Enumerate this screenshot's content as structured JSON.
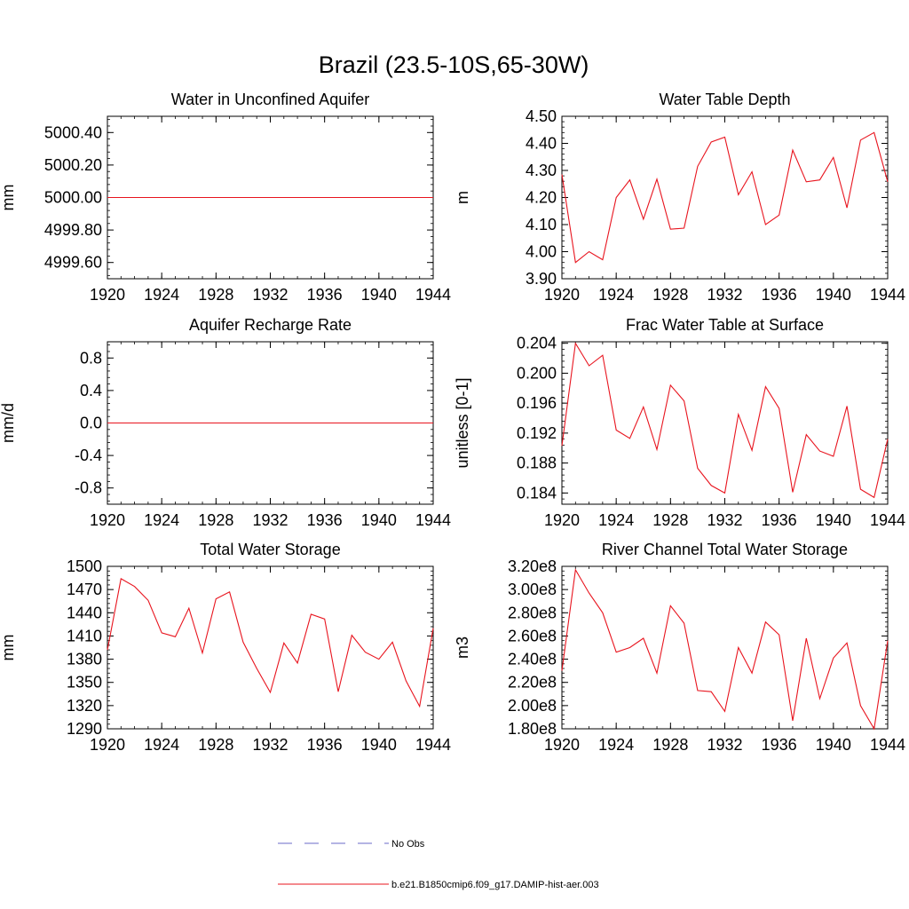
{
  "figure": {
    "title": "Brazil (23.5-10S,65-30W)"
  },
  "legend": [
    {
      "label": "No Obs",
      "color": "#6a6ac8",
      "dash": true
    },
    {
      "label": "b.e21.B1850cmip6.f09_g17.DAMIP-hist-aer.003",
      "color": "#e8141e",
      "dash": false
    }
  ],
  "chart_data": [
    {
      "type": "line",
      "title": "Water in Unconfined Aquifer",
      "ylabel": "mm",
      "xlim": [
        1920,
        1944
      ],
      "ylim": [
        4999.5,
        5000.5
      ],
      "xticks": [
        "1920",
        "1924",
        "1928",
        "1932",
        "1936",
        "1940",
        "1944"
      ],
      "xtick_values": [
        1920,
        1924,
        1928,
        1932,
        1936,
        1940,
        1944
      ],
      "yticks": [
        "4999.60",
        "4999.80",
        "5000.00",
        "5000.20",
        "5000.40"
      ],
      "ytick_values": [
        4999.6,
        4999.8,
        5000.0,
        5000.2,
        5000.4
      ],
      "x": [
        1920,
        1921,
        1922,
        1923,
        1924,
        1925,
        1926,
        1927,
        1928,
        1929,
        1930,
        1931,
        1932,
        1933,
        1934,
        1935,
        1936,
        1937,
        1938,
        1939,
        1940,
        1941,
        1942,
        1943,
        1944
      ],
      "series": [
        {
          "values": [
            5000,
            5000,
            5000,
            5000,
            5000,
            5000,
            5000,
            5000,
            5000,
            5000,
            5000,
            5000,
            5000,
            5000,
            5000,
            5000,
            5000,
            5000,
            5000,
            5000,
            5000,
            5000,
            5000,
            5000,
            5000
          ],
          "color": "#e8141e"
        }
      ]
    },
    {
      "type": "line",
      "title": "Water Table Depth",
      "ylabel": "m",
      "xlim": [
        1920,
        1944
      ],
      "ylim": [
        3.9,
        4.5
      ],
      "xticks": [
        "1920",
        "1924",
        "1928",
        "1932",
        "1936",
        "1940",
        "1944"
      ],
      "xtick_values": [
        1920,
        1924,
        1928,
        1932,
        1936,
        1940,
        1944
      ],
      "yticks": [
        "3.90",
        "4.00",
        "4.10",
        "4.20",
        "4.30",
        "4.40",
        "4.50"
      ],
      "ytick_values": [
        3.9,
        4.0,
        4.1,
        4.2,
        4.3,
        4.4,
        4.5
      ],
      "x": [
        1920,
        1921,
        1922,
        1923,
        1924,
        1925,
        1926,
        1927,
        1928,
        1929,
        1930,
        1931,
        1932,
        1933,
        1934,
        1935,
        1936,
        1937,
        1938,
        1939,
        1940,
        1941,
        1942,
        1943,
        1944
      ],
      "series": [
        {
          "values": [
            4.285,
            3.96,
            4.0,
            3.97,
            4.2,
            4.265,
            4.12,
            4.268,
            4.083,
            4.087,
            4.315,
            4.405,
            4.423,
            4.21,
            4.295,
            4.1,
            4.135,
            4.375,
            4.258,
            4.265,
            4.348,
            4.162,
            4.412,
            4.44,
            4.258
          ],
          "color": "#e8141e"
        }
      ]
    },
    {
      "type": "line",
      "title": "Aquifer Recharge Rate",
      "ylabel": "mm/d",
      "xlim": [
        1920,
        1944
      ],
      "ylim": [
        -1.0,
        1.0
      ],
      "xticks": [
        "1920",
        "1924",
        "1928",
        "1932",
        "1936",
        "1940",
        "1944"
      ],
      "xtick_values": [
        1920,
        1924,
        1928,
        1932,
        1936,
        1940,
        1944
      ],
      "yticks": [
        "-0.8",
        "-0.4",
        "0.0",
        "0.4",
        "0.8"
      ],
      "ytick_values": [
        -0.8,
        -0.4,
        0.0,
        0.4,
        0.8
      ],
      "x": [
        1920,
        1921,
        1922,
        1923,
        1924,
        1925,
        1926,
        1927,
        1928,
        1929,
        1930,
        1931,
        1932,
        1933,
        1934,
        1935,
        1936,
        1937,
        1938,
        1939,
        1940,
        1941,
        1942,
        1943,
        1944
      ],
      "series": [
        {
          "values": [
            0,
            0,
            0,
            0,
            0,
            0,
            0,
            0,
            0,
            0,
            0,
            0,
            0,
            0,
            0,
            0,
            0,
            0,
            0,
            0,
            0,
            0,
            0,
            0,
            0
          ],
          "color": "#e8141e"
        }
      ]
    },
    {
      "type": "line",
      "title": "Frac Water Table at Surface",
      "ylabel": "unitless [0-1]",
      "xlim": [
        1920,
        1944
      ],
      "ylim": [
        0.1825,
        0.2042
      ],
      "xticks": [
        "1920",
        "1924",
        "1928",
        "1932",
        "1936",
        "1940",
        "1944"
      ],
      "xtick_values": [
        1920,
        1924,
        1928,
        1932,
        1936,
        1940,
        1944
      ],
      "yticks": [
        "0.184",
        "0.188",
        "0.192",
        "0.196",
        "0.200",
        "0.204"
      ],
      "ytick_values": [
        0.184,
        0.188,
        0.192,
        0.196,
        0.2,
        0.204
      ],
      "x": [
        1920,
        1921,
        1922,
        1923,
        1924,
        1925,
        1926,
        1927,
        1928,
        1929,
        1930,
        1931,
        1932,
        1933,
        1934,
        1935,
        1936,
        1937,
        1938,
        1939,
        1940,
        1941,
        1942,
        1943,
        1944
      ],
      "series": [
        {
          "values": [
            0.1903,
            0.204,
            0.201,
            0.2024,
            0.1924,
            0.1913,
            0.1955,
            0.1898,
            0.1984,
            0.1963,
            0.1873,
            0.185,
            0.184,
            0.1945,
            0.1897,
            0.1982,
            0.1953,
            0.1841,
            0.1918,
            0.1896,
            0.1889,
            0.1956,
            0.1845,
            0.1834,
            0.1912
          ],
          "color": "#e8141e"
        }
      ]
    },
    {
      "type": "line",
      "title": "Total Water Storage",
      "ylabel": "mm",
      "xlim": [
        1920,
        1944
      ],
      "ylim": [
        1290,
        1500
      ],
      "xticks": [
        "1920",
        "1924",
        "1928",
        "1932",
        "1936",
        "1940",
        "1944"
      ],
      "xtick_values": [
        1920,
        1924,
        1928,
        1932,
        1936,
        1940,
        1944
      ],
      "yticks": [
        "1290",
        "1320",
        "1350",
        "1380",
        "1410",
        "1440",
        "1470",
        "1500"
      ],
      "ytick_values": [
        1290,
        1320,
        1350,
        1380,
        1410,
        1440,
        1470,
        1500
      ],
      "x": [
        1920,
        1921,
        1922,
        1923,
        1924,
        1925,
        1926,
        1927,
        1928,
        1929,
        1930,
        1931,
        1932,
        1933,
        1934,
        1935,
        1936,
        1937,
        1938,
        1939,
        1940,
        1941,
        1942,
        1943,
        1944
      ],
      "series": [
        {
          "values": [
            1392,
            1484,
            1474,
            1456,
            1414,
            1409,
            1446,
            1388,
            1458,
            1467,
            1402,
            1368,
            1337,
            1401,
            1375,
            1438,
            1432,
            1338,
            1411,
            1389,
            1380,
            1402,
            1352,
            1319,
            1420
          ],
          "color": "#e8141e"
        }
      ]
    },
    {
      "type": "line",
      "title": "River Channel Total Water Storage",
      "ylabel": "m3",
      "xlim": [
        1920,
        1944
      ],
      "ylim": [
        180000000,
        320000000
      ],
      "xticks": [
        "1920",
        "1924",
        "1928",
        "1932",
        "1936",
        "1940",
        "1944"
      ],
      "xtick_values": [
        1920,
        1924,
        1928,
        1932,
        1936,
        1940,
        1944
      ],
      "yticks": [
        "1.80e8",
        "2.00e8",
        "2.20e8",
        "2.40e8",
        "2.60e8",
        "2.80e8",
        "3.00e8",
        "3.20e8"
      ],
      "ytick_values": [
        180000000,
        200000000,
        220000000,
        240000000,
        260000000,
        280000000,
        300000000,
        320000000
      ],
      "x": [
        1920,
        1921,
        1922,
        1923,
        1924,
        1925,
        1926,
        1927,
        1928,
        1929,
        1930,
        1931,
        1932,
        1933,
        1934,
        1935,
        1936,
        1937,
        1938,
        1939,
        1940,
        1941,
        1942,
        1943,
        1944
      ],
      "series": [
        {
          "values": [
            230000000,
            317000000,
            297000000,
            280000000,
            246000000,
            250000000,
            258000000,
            228000000,
            286000000,
            271000000,
            213000000,
            212000000,
            195000000,
            250000000,
            228000000,
            272000000,
            261000000,
            187000000,
            258000000,
            206000000,
            241000000,
            254000000,
            200000000,
            180000000,
            256000000
          ],
          "color": "#e8141e"
        }
      ]
    }
  ]
}
